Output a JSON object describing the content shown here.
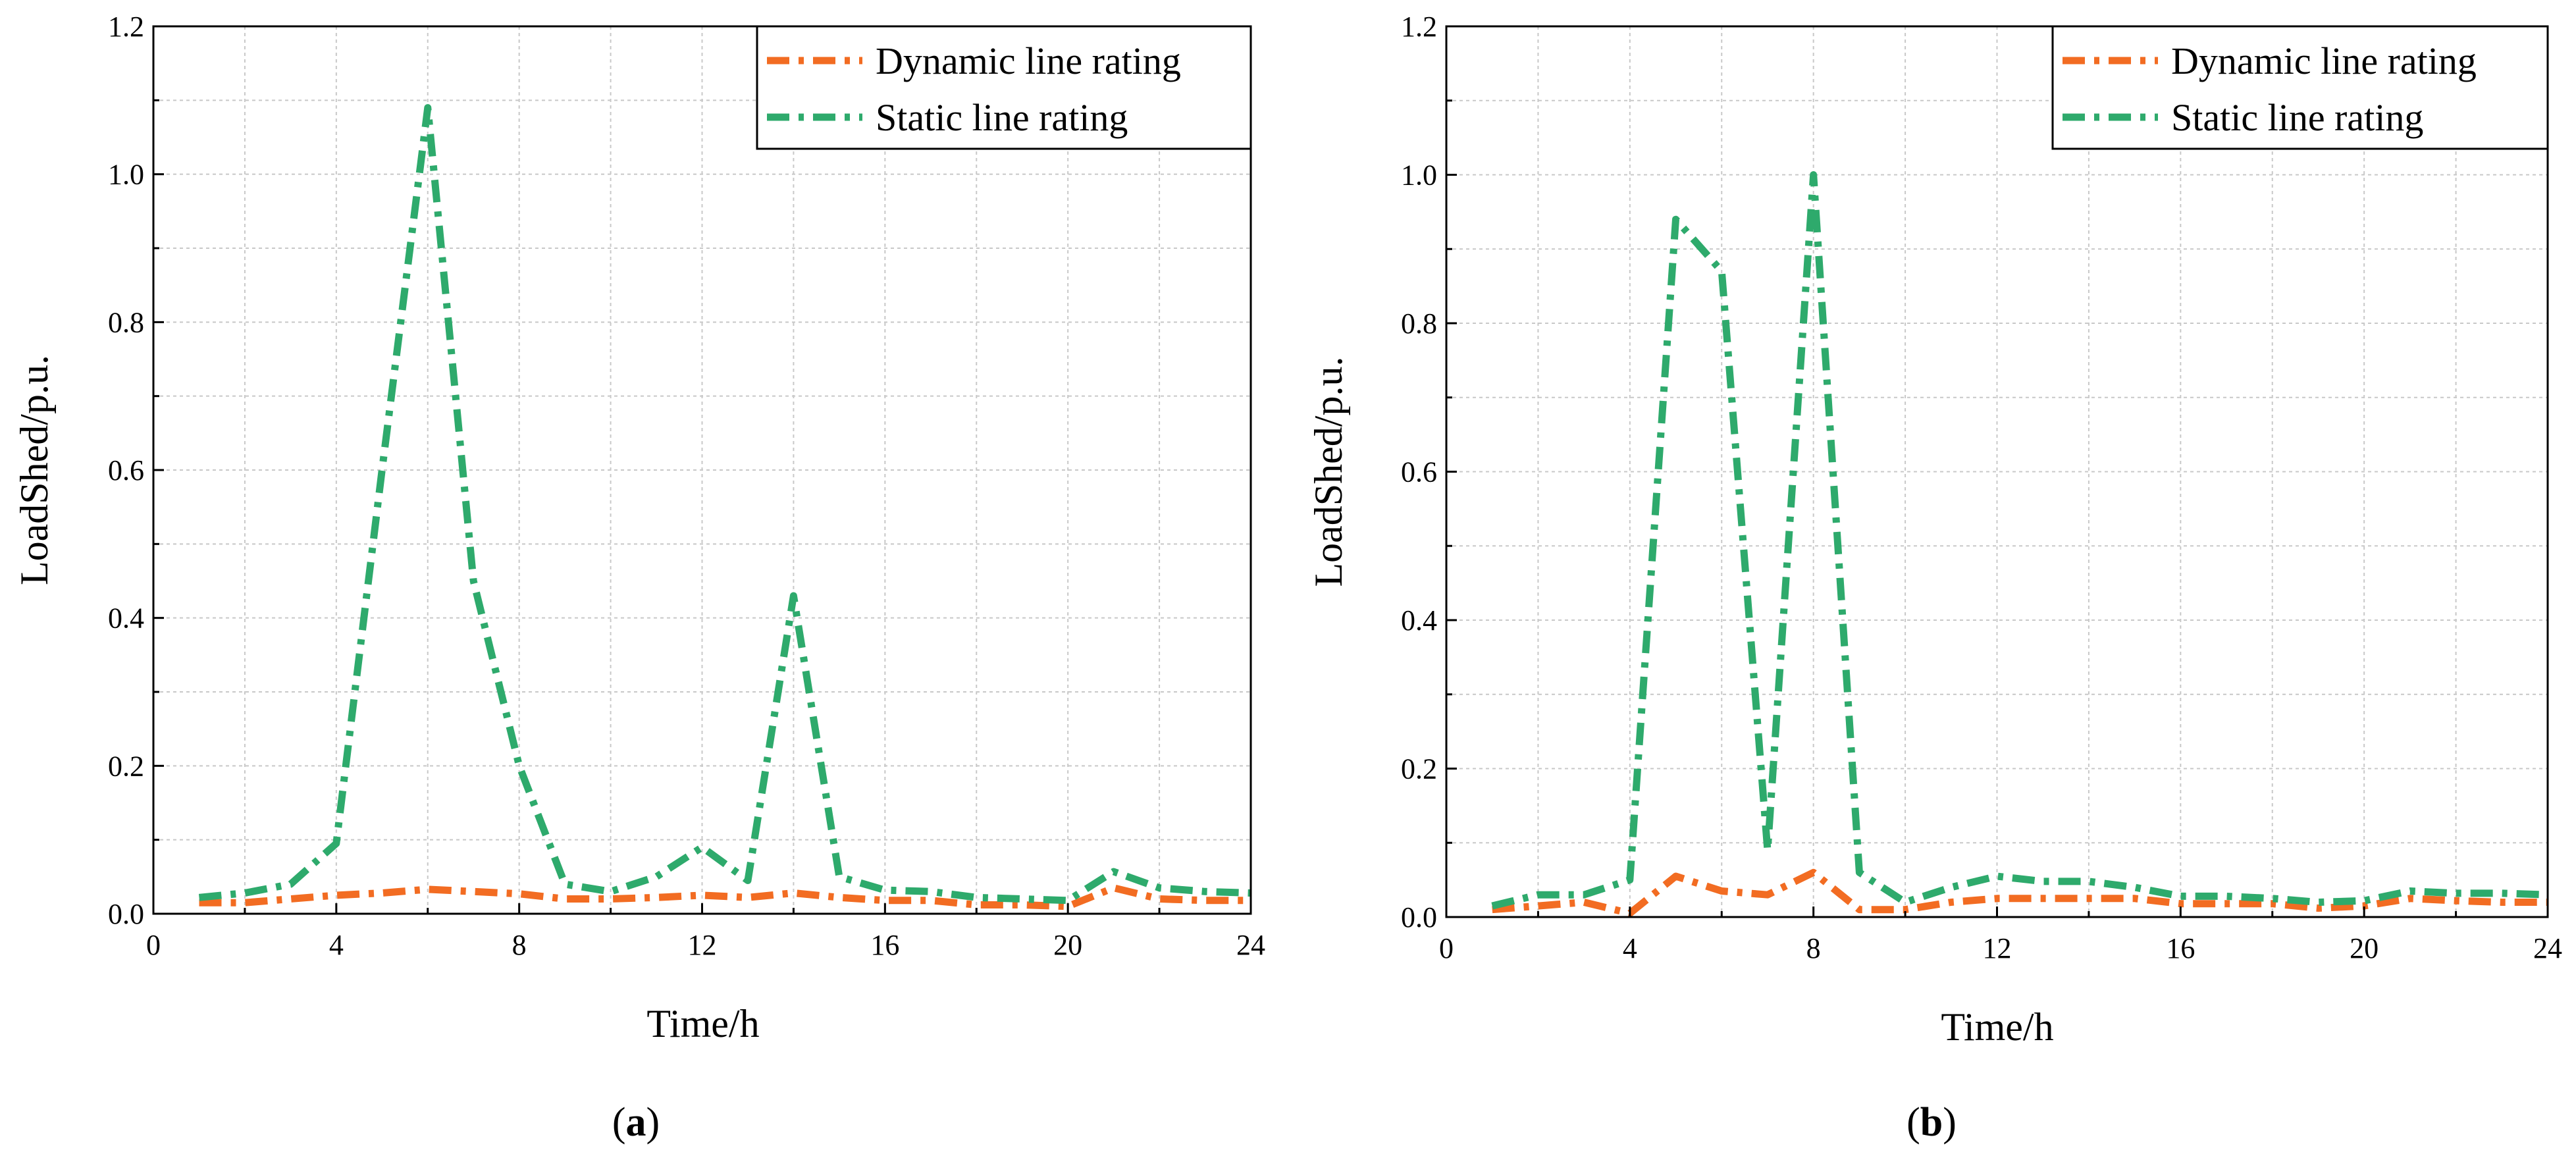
{
  "chart_data": [
    {
      "type": "line",
      "panel": "a",
      "caption_open": "(",
      "caption_letter": "a",
      "caption_close": ")",
      "xlabel": "Time/h",
      "ylabel": "LoadShed/p.u.",
      "xlim": [
        0,
        24
      ],
      "ylim": [
        0,
        1.2
      ],
      "xticks": [
        0,
        4,
        8,
        12,
        16,
        20,
        24
      ],
      "yticks": [
        0.0,
        0.2,
        0.4,
        0.6,
        0.8,
        1.0,
        1.2
      ],
      "ytick_labels": [
        "0.0",
        "0.2",
        "0.4",
        "0.6",
        "0.8",
        "1.0",
        "1.2"
      ],
      "grid": true,
      "legend_position": "top-right",
      "x": [
        1,
        2,
        3,
        4,
        5,
        6,
        7,
        8,
        9,
        10,
        11,
        12,
        13,
        14,
        15,
        16,
        17,
        18,
        19,
        20,
        21,
        22,
        23,
        24
      ],
      "series": [
        {
          "name": "Dynamic line rating",
          "color": "#f26c22",
          "values": [
            0.015,
            0.015,
            0.02,
            0.025,
            0.028,
            0.033,
            0.03,
            0.027,
            0.02,
            0.02,
            0.022,
            0.025,
            0.022,
            0.028,
            0.022,
            0.018,
            0.018,
            0.012,
            0.012,
            0.01,
            0.035,
            0.02,
            0.018,
            0.018
          ]
        },
        {
          "name": "Static line rating",
          "color": "#2eaa6c",
          "values": [
            0.022,
            0.028,
            0.04,
            0.095,
            0.6,
            1.09,
            0.45,
            0.2,
            0.04,
            0.03,
            0.05,
            0.09,
            0.045,
            0.43,
            0.05,
            0.032,
            0.03,
            0.022,
            0.02,
            0.018,
            0.057,
            0.035,
            0.03,
            0.028
          ]
        }
      ]
    },
    {
      "type": "line",
      "panel": "b",
      "caption_open": "(",
      "caption_letter": "b",
      "caption_close": ")",
      "xlabel": "Time/h",
      "ylabel": "LoadShed/p.u.",
      "xlim": [
        0,
        24
      ],
      "ylim": [
        0,
        1.2
      ],
      "xticks": [
        0,
        4,
        8,
        12,
        16,
        20,
        24
      ],
      "yticks": [
        0.0,
        0.2,
        0.4,
        0.6,
        0.8,
        1.0,
        1.2
      ],
      "ytick_labels": [
        "0.0",
        "0.2",
        "0.4",
        "0.6",
        "0.8",
        "1.0",
        "1.2"
      ],
      "grid": true,
      "legend_position": "top-right",
      "x": [
        1,
        2,
        3,
        4,
        5,
        6,
        7,
        8,
        9,
        10,
        11,
        12,
        13,
        14,
        15,
        16,
        17,
        18,
        19,
        20,
        21,
        22,
        23,
        24
      ],
      "series": [
        {
          "name": "Dynamic line rating",
          "color": "#f26c22",
          "values": [
            0.01,
            0.015,
            0.02,
            0.005,
            0.055,
            0.035,
            0.03,
            0.06,
            0.01,
            0.01,
            0.02,
            0.025,
            0.025,
            0.025,
            0.025,
            0.018,
            0.018,
            0.018,
            0.012,
            0.015,
            0.025,
            0.022,
            0.02,
            0.02
          ]
        },
        {
          "name": "Static line rating",
          "color": "#2eaa6c",
          "values": [
            0.015,
            0.03,
            0.03,
            0.05,
            0.94,
            0.87,
            0.09,
            1.0,
            0.06,
            0.02,
            0.04,
            0.055,
            0.048,
            0.048,
            0.04,
            0.028,
            0.028,
            0.025,
            0.02,
            0.022,
            0.035,
            0.032,
            0.032,
            0.03
          ]
        }
      ]
    }
  ]
}
